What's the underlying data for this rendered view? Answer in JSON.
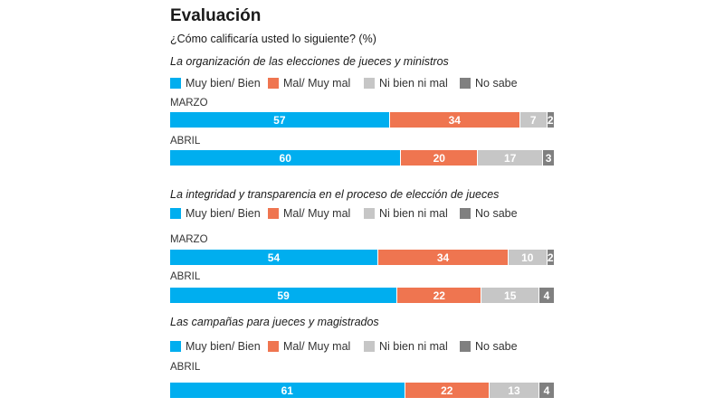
{
  "header": {
    "title": "Evaluación",
    "subtitle": "¿Cómo calificaría usted lo siguiente? (%)"
  },
  "legend": [
    {
      "label": "Muy bien/ Bien",
      "color": "#00aeef"
    },
    {
      "label": "Mal/ Muy mal",
      "color": "#ef7550"
    },
    {
      "label": "Ni bien ni mal",
      "color": "#c6c6c6"
    },
    {
      "label": "No sabe",
      "color": "#808080"
    }
  ],
  "chart_data": {
    "type": "bar",
    "orientation": "horizontal-stacked-100",
    "title": "Evaluación",
    "subtitle": "¿Cómo calificaría usted lo siguiente? (%)",
    "series_names": [
      "Muy bien/ Bien",
      "Mal/ Muy mal",
      "Ni bien ni mal",
      "No sabe"
    ],
    "colors": [
      "#00aeef",
      "#ef7550",
      "#c6c6c6",
      "#808080"
    ],
    "panels": [
      {
        "title": "La organización de las elecciones de jueces y ministros",
        "rows": [
          {
            "label": "MARZO",
            "values": [
              57,
              34,
              7,
              2
            ]
          },
          {
            "label": "ABRIL",
            "values": [
              60,
              20,
              17,
              3
            ]
          }
        ]
      },
      {
        "title": "La integridad y transparencia en el proceso de elección de jueces",
        "rows": [
          {
            "label": "MARZO",
            "values": [
              54,
              34,
              10,
              2
            ]
          },
          {
            "label": "ABRIL",
            "values": [
              59,
              22,
              15,
              4
            ]
          }
        ]
      },
      {
        "title": "Las campañas para jueces y magistrados",
        "rows": [
          {
            "label": "ABRIL",
            "values": [
              61,
              22,
              13,
              4
            ]
          }
        ]
      }
    ]
  }
}
